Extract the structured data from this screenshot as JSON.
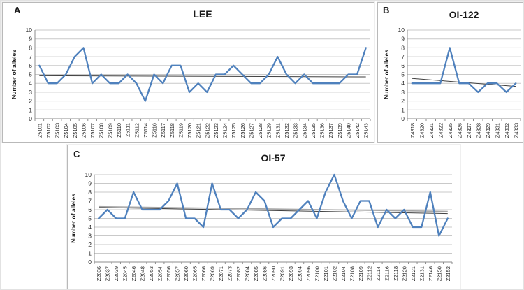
{
  "figure": {
    "description": "Three line charts of allele numbers per sample",
    "background": "#ffffff"
  },
  "colors": {
    "series_line": "#4F81BD",
    "trendline_dark": "#3f3f3f",
    "trendline_gray": "#A6A6A6",
    "gridline": "#c9c9c9",
    "axis": "#8c8c8c",
    "tick_text": "#262626"
  },
  "chart_data": [
    {
      "type": "line",
      "panel_letter": "A",
      "title": "LEE",
      "ylabel": "Number of alleles",
      "ylim": [
        0,
        10
      ],
      "yticks": [
        0,
        1,
        2,
        3,
        4,
        5,
        6,
        7,
        8,
        9,
        10
      ],
      "grid": true,
      "legend": "none",
      "categories": [
        "Z5101",
        "Z5102",
        "Z5103",
        "Z5104",
        "Z5105",
        "Z5106",
        "Z5107",
        "Z5108",
        "Z5109",
        "Z5110",
        "Z5111",
        "Z5112",
        "Z5114",
        "Z5116",
        "Z5117",
        "Z5118",
        "Z5119",
        "Z5120",
        "Z5121",
        "Z5122",
        "Z5123",
        "Z5124",
        "Z5125",
        "Z5126",
        "Z5127",
        "Z5128",
        "Z5129",
        "Z5131",
        "Z5132",
        "Z5133",
        "Z5134",
        "Z5135",
        "Z5136",
        "Z5137",
        "Z5139",
        "Z5140",
        "Z5142",
        "Z5143"
      ],
      "values": [
        6,
        4,
        4,
        5,
        7,
        8,
        4,
        5,
        4,
        4,
        5,
        4,
        2,
        5,
        4,
        6,
        6,
        3,
        4,
        3,
        5,
        5,
        6,
        5,
        4,
        4,
        5,
        7,
        5,
        4,
        5,
        4,
        4,
        4,
        4,
        5,
        5,
        8
      ],
      "trendlines": [
        {
          "name": "linear-trend",
          "color": "dark",
          "start": 4.85,
          "end": 4.72
        }
      ]
    },
    {
      "type": "line",
      "panel_letter": "B",
      "title": "OI-122",
      "ylabel": "Number of alleles",
      "ylim": [
        0,
        10
      ],
      "yticks": [
        0,
        1,
        2,
        3,
        4,
        5,
        6,
        7,
        8,
        9,
        10
      ],
      "grid": true,
      "legend": "none",
      "categories": [
        "Z4318",
        "Z4320",
        "Z4321",
        "Z4322",
        "Z4325",
        "Z4326",
        "Z4327",
        "Z4328",
        "Z4329",
        "Z4331",
        "Z4332",
        "Z4333"
      ],
      "values": [
        4,
        4,
        4,
        4,
        8,
        4,
        4,
        3,
        4,
        4,
        3,
        4
      ],
      "trendlines": [
        {
          "name": "linear-trend",
          "color": "dark",
          "start": 4.55,
          "end": 3.65
        }
      ]
    },
    {
      "type": "line",
      "panel_letter": "C",
      "title": "OI-57",
      "ylabel": "Number of alleles",
      "ylim": [
        0,
        10
      ],
      "yticks": [
        0,
        1,
        2,
        3,
        4,
        5,
        6,
        7,
        8,
        9,
        10
      ],
      "grid": true,
      "legend": "none",
      "categories": [
        "Z2036",
        "Z2037",
        "Z2039",
        "Z2045",
        "Z2046",
        "Z2048",
        "Z2053",
        "Z2054",
        "Z2056",
        "Z2057",
        "Z2060",
        "Z2065",
        "Z2066",
        "Z2069",
        "Z2071",
        "Z2073",
        "Z2082",
        "Z2084",
        "Z2085",
        "Z2086",
        "Z2090",
        "Z2091",
        "Z2093",
        "Z2094",
        "Z2096",
        "Z2100",
        "Z2101",
        "Z2102",
        "Z2104",
        "Z2108",
        "Z2109",
        "Z2112",
        "Z2114",
        "Z2116",
        "Z2118",
        "Z2120",
        "Z2121",
        "Z2131",
        "Z2146",
        "Z2150",
        "Z2152"
      ],
      "values": [
        5,
        6,
        5,
        5,
        8,
        6,
        6,
        6,
        7,
        9,
        5,
        5,
        4,
        9,
        6,
        6,
        5,
        6,
        8,
        7,
        4,
        5,
        5,
        6,
        7,
        5,
        8,
        10,
        7,
        5,
        7,
        7,
        4,
        6,
        5,
        6,
        4,
        4,
        8,
        3,
        5
      ],
      "trendlines": [
        {
          "name": "gray-trend",
          "color": "gray",
          "start": 6.35,
          "end": 5.8
        },
        {
          "name": "linear-trend",
          "color": "dark",
          "start": 6.25,
          "end": 5.55
        }
      ]
    }
  ]
}
